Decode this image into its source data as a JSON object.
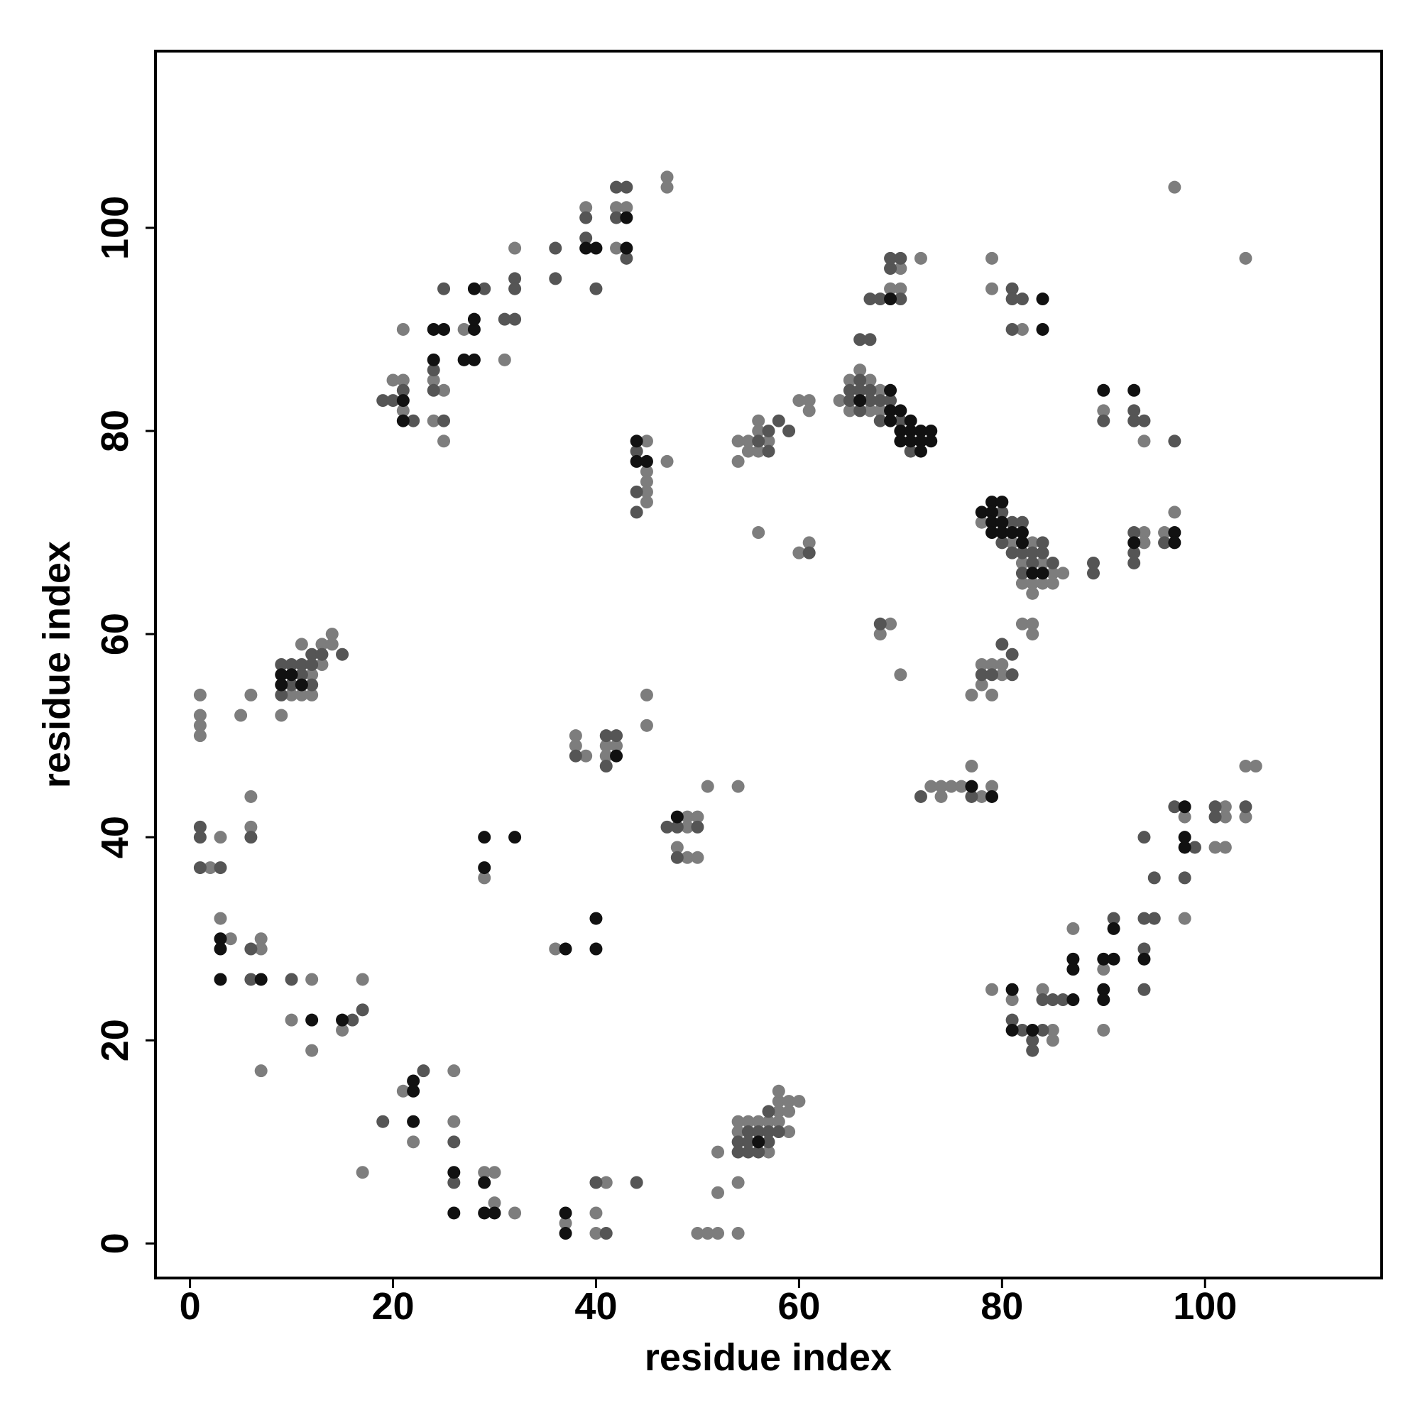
{
  "chart_data": {
    "type": "scatter",
    "xlabel": "residue index",
    "ylabel": "residue index",
    "xlim": [
      -3.4,
      117.4
    ],
    "ylim": [
      -3.4,
      117.4
    ],
    "xticks": [
      0,
      20,
      40,
      60,
      80,
      100
    ],
    "yticks": [
      0,
      20,
      40,
      60,
      80,
      100
    ],
    "series": [
      {
        "color": "#7d7d7d",
        "x": [
          1,
          1,
          1,
          1,
          6,
          5,
          9,
          10,
          11,
          12,
          12,
          13,
          13,
          14,
          14,
          11,
          2,
          3,
          6,
          6,
          3,
          4,
          7,
          7,
          12,
          10,
          12,
          15,
          17,
          7,
          21,
          22,
          26,
          26,
          17,
          29,
          30,
          30,
          32,
          37,
          40,
          41,
          40,
          50,
          51,
          52,
          54,
          52,
          52,
          54,
          54,
          54,
          55,
          56,
          57,
          57,
          58,
          58,
          58,
          58,
          59,
          59,
          59,
          60,
          29,
          36,
          38,
          38,
          39,
          41,
          41,
          42,
          45,
          45,
          48,
          49,
          49,
          50,
          49,
          50,
          51,
          54,
          20,
          21,
          21,
          21,
          24,
          24,
          25,
          25,
          27,
          31,
          32,
          39,
          42,
          43,
          42,
          47,
          47,
          45,
          45,
          45,
          45,
          45,
          47,
          54,
          55,
          54,
          55,
          56,
          56,
          56,
          57,
          60,
          61,
          61,
          56,
          60,
          61,
          64,
          65,
          65,
          66,
          67,
          67,
          68,
          68,
          69,
          70,
          70,
          72,
          69,
          68,
          70,
          73,
          74,
          74,
          75,
          76,
          77,
          78,
          79,
          77,
          78,
          78,
          79,
          79,
          80,
          80,
          82,
          83,
          83,
          78,
          81,
          82,
          82,
          83,
          83,
          83,
          84,
          84,
          85,
          85,
          86,
          79,
          79,
          82,
          90,
          94,
          94,
          94,
          96,
          97,
          97,
          104,
          79,
          81,
          84,
          85,
          85,
          87,
          90,
          90,
          98,
          98,
          101,
          102,
          102,
          102,
          104,
          105,
          104
        ],
        "y": [
          54,
          52,
          51,
          50,
          54,
          52,
          52,
          54,
          59,
          56,
          54,
          57,
          59,
          59,
          60,
          54,
          37,
          40,
          44,
          41,
          32,
          30,
          30,
          29,
          26,
          22,
          19,
          21,
          26,
          17,
          15,
          10,
          17,
          12,
          7,
          7,
          7,
          4,
          3,
          2,
          3,
          6,
          1,
          1,
          1,
          1,
          1,
          9,
          5,
          6,
          12,
          11,
          12,
          12,
          12,
          9,
          13,
          12,
          14,
          15,
          13,
          11,
          14,
          14,
          36,
          29,
          50,
          49,
          48,
          49,
          48,
          49,
          54,
          51,
          39,
          42,
          41,
          42,
          38,
          38,
          45,
          45,
          85,
          85,
          82,
          90,
          85,
          81,
          84,
          79,
          90,
          87,
          98,
          102,
          102,
          102,
          98,
          105,
          104,
          79,
          76,
          75,
          74,
          73,
          77,
          79,
          79,
          77,
          78,
          81,
          80,
          78,
          79,
          83,
          83,
          82,
          70,
          68,
          69,
          83,
          85,
          82,
          86,
          85,
          82,
          84,
          82,
          94,
          94,
          96,
          97,
          61,
          60,
          56,
          45,
          45,
          44,
          45,
          45,
          47,
          44,
          45,
          54,
          57,
          55,
          57,
          54,
          57,
          56,
          61,
          61,
          60,
          71,
          69,
          67,
          65,
          69,
          65,
          64,
          67,
          65,
          66,
          65,
          66,
          97,
          94,
          90,
          82,
          79,
          70,
          69,
          70,
          72,
          104,
          97,
          25,
          24,
          25,
          21,
          20,
          31,
          27,
          21,
          42,
          32,
          39,
          43,
          42,
          39,
          47,
          47,
          42
        ]
      },
      {
        "color": "#555555",
        "x": [
          9,
          9,
          10,
          10,
          11,
          11,
          12,
          12,
          12,
          13,
          15,
          1,
          1,
          1,
          3,
          6,
          6,
          6,
          10,
          16,
          17,
          19,
          23,
          26,
          26,
          40,
          41,
          44,
          54,
          54,
          55,
          55,
          55,
          56,
          56,
          57,
          57,
          57,
          58,
          38,
          41,
          41,
          42,
          47,
          48,
          48,
          50,
          19,
          20,
          21,
          22,
          24,
          24,
          25,
          25,
          29,
          31,
          32,
          32,
          32,
          36,
          36,
          39,
          39,
          40,
          42,
          43,
          42,
          43,
          44,
          44,
          44,
          56,
          57,
          57,
          58,
          59,
          61,
          65,
          65,
          66,
          66,
          66,
          67,
          67,
          68,
          68,
          69,
          70,
          71,
          66,
          67,
          67,
          68,
          70,
          69,
          69,
          70,
          68,
          72,
          77,
          78,
          79,
          80,
          81,
          81,
          80,
          80,
          81,
          81,
          82,
          82,
          82,
          83,
          83,
          84,
          84,
          85,
          89,
          89,
          81,
          81,
          82,
          81,
          90,
          93,
          93,
          94,
          97,
          93,
          93,
          93,
          96,
          81,
          82,
          83,
          83,
          84,
          84,
          85,
          86,
          91,
          94,
          95,
          94,
          94,
          94,
          95,
          97,
          99,
          98,
          101,
          101,
          104
        ],
        "y": [
          57,
          54,
          57,
          55,
          56,
          57,
          58,
          57,
          55,
          58,
          58,
          41,
          40,
          37,
          37,
          40,
          29,
          26,
          26,
          22,
          23,
          12,
          17,
          10,
          6,
          6,
          1,
          6,
          10,
          9,
          11,
          10,
          9,
          11,
          9,
          13,
          11,
          10,
          11,
          48,
          50,
          47,
          50,
          41,
          41,
          38,
          41,
          83,
          83,
          84,
          81,
          86,
          84,
          81,
          94,
          94,
          91,
          91,
          95,
          94,
          98,
          95,
          101,
          99,
          94,
          104,
          104,
          101,
          97,
          78,
          74,
          72,
          79,
          80,
          78,
          81,
          80,
          68,
          84,
          83,
          85,
          84,
          82,
          84,
          83,
          83,
          81,
          83,
          81,
          78,
          89,
          89,
          93,
          93,
          93,
          96,
          97,
          97,
          61,
          44,
          44,
          56,
          56,
          59,
          58,
          56,
          72,
          69,
          71,
          68,
          71,
          68,
          66,
          68,
          67,
          69,
          68,
          67,
          67,
          66,
          94,
          93,
          93,
          90,
          81,
          82,
          81,
          81,
          79,
          70,
          68,
          67,
          69,
          22,
          21,
          20,
          19,
          24,
          21,
          24,
          24,
          32,
          32,
          32,
          29,
          25,
          40,
          36,
          43,
          39,
          36,
          43,
          42,
          43
        ]
      },
      {
        "color": "#111111",
        "x": [
          9,
          9,
          10,
          11,
          3,
          3,
          3,
          7,
          12,
          15,
          22,
          22,
          22,
          26,
          26,
          29,
          29,
          30,
          37,
          37,
          56,
          29,
          29,
          32,
          37,
          40,
          40,
          42,
          48,
          21,
          21,
          24,
          25,
          24,
          27,
          28,
          28,
          28,
          28,
          39,
          40,
          43,
          43,
          44,
          44,
          45,
          66,
          69,
          69,
          69,
          70,
          70,
          70,
          71,
          71,
          71,
          72,
          72,
          72,
          73,
          73,
          69,
          77,
          79,
          78,
          79,
          79,
          79,
          79,
          80,
          80,
          80,
          81,
          82,
          82,
          83,
          84,
          84,
          84,
          90,
          93,
          93,
          97,
          97,
          81,
          81,
          83,
          87,
          87,
          87,
          90,
          90,
          90,
          91,
          91,
          94,
          98,
          98,
          98
        ],
        "y": [
          56,
          55,
          56,
          55,
          30,
          29,
          26,
          26,
          22,
          22,
          16,
          15,
          12,
          7,
          3,
          6,
          3,
          3,
          3,
          1,
          10,
          40,
          37,
          40,
          29,
          32,
          29,
          48,
          42,
          83,
          81,
          90,
          90,
          87,
          87,
          87,
          90,
          91,
          94,
          98,
          98,
          101,
          98,
          79,
          77,
          77,
          83,
          84,
          82,
          81,
          82,
          80,
          79,
          81,
          80,
          79,
          80,
          79,
          78,
          80,
          79,
          93,
          45,
          44,
          72,
          73,
          72,
          71,
          70,
          73,
          71,
          70,
          70,
          70,
          69,
          66,
          66,
          93,
          90,
          84,
          84,
          69,
          70,
          69,
          25,
          21,
          21,
          24,
          28,
          27,
          28,
          25,
          24,
          28,
          31,
          28,
          43,
          40,
          39
        ]
      }
    ]
  }
}
